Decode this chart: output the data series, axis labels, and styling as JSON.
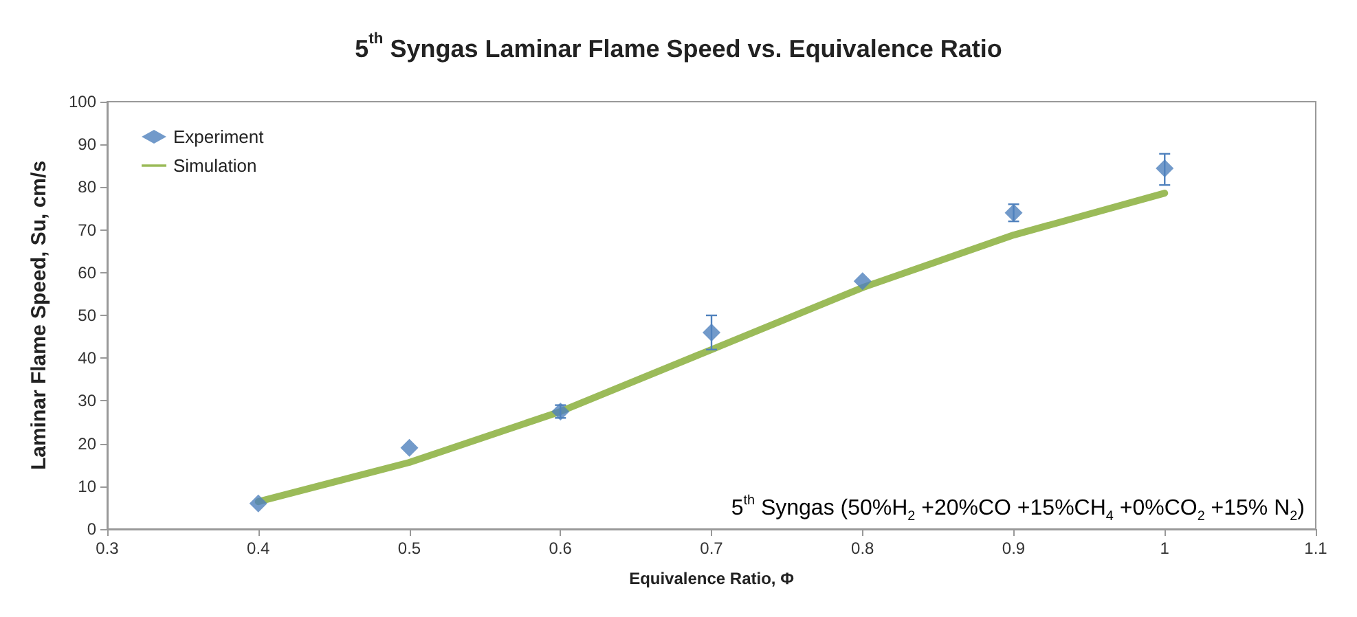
{
  "chart_data": {
    "type": "scatter",
    "title": "5$^{th}$ Syngas Laminar Flame Speed vs. Equivalence Ratio",
    "xlabel": "Equivalence Ratio, Φ",
    "ylabel": "Laminar Flame Speed, Su, cm/s",
    "annotations": [
      "5$^{th}$ Syngas (50%H$_{2}$ +20%CO +15%CH$_{4}$ +0%CO$_{2}$ +15% N$_{2}$)"
    ],
    "x": [
      0.4,
      0.5,
      0.6,
      0.7,
      0.8,
      0.9,
      1.0
    ],
    "series": [
      {
        "name": "Experiment",
        "color": "#4f81bd",
        "marker": "diamond",
        "values": [
          6,
          19,
          27.5,
          46,
          58,
          74,
          84.4
        ],
        "errors": [
          null,
          null,
          1.5,
          [
            42,
            50
          ],
          null,
          [
            72,
            76
          ],
          [
            80.5,
            87.8
          ]
        ]
      },
      {
        "name": "Simulation",
        "type": "line",
        "color": "#9bbb59",
        "marker": "none",
        "line_style": "solid",
        "values": [
          6.4,
          15.6,
          27.5,
          42,
          56.5,
          68.8,
          78.6
        ]
      }
    ],
    "xlim": [
      0.3,
      1.1
    ],
    "xticks": [
      0.3,
      0.4,
      0.5,
      0.6,
      0.7,
      0.8,
      0.9,
      1,
      1.1
    ],
    "ylim": [
      0,
      100
    ],
    "yticks": [
      0,
      10,
      20,
      30,
      40,
      50,
      60,
      70,
      80,
      90,
      100
    ],
    "grid": false,
    "legend": "top left"
  }
}
